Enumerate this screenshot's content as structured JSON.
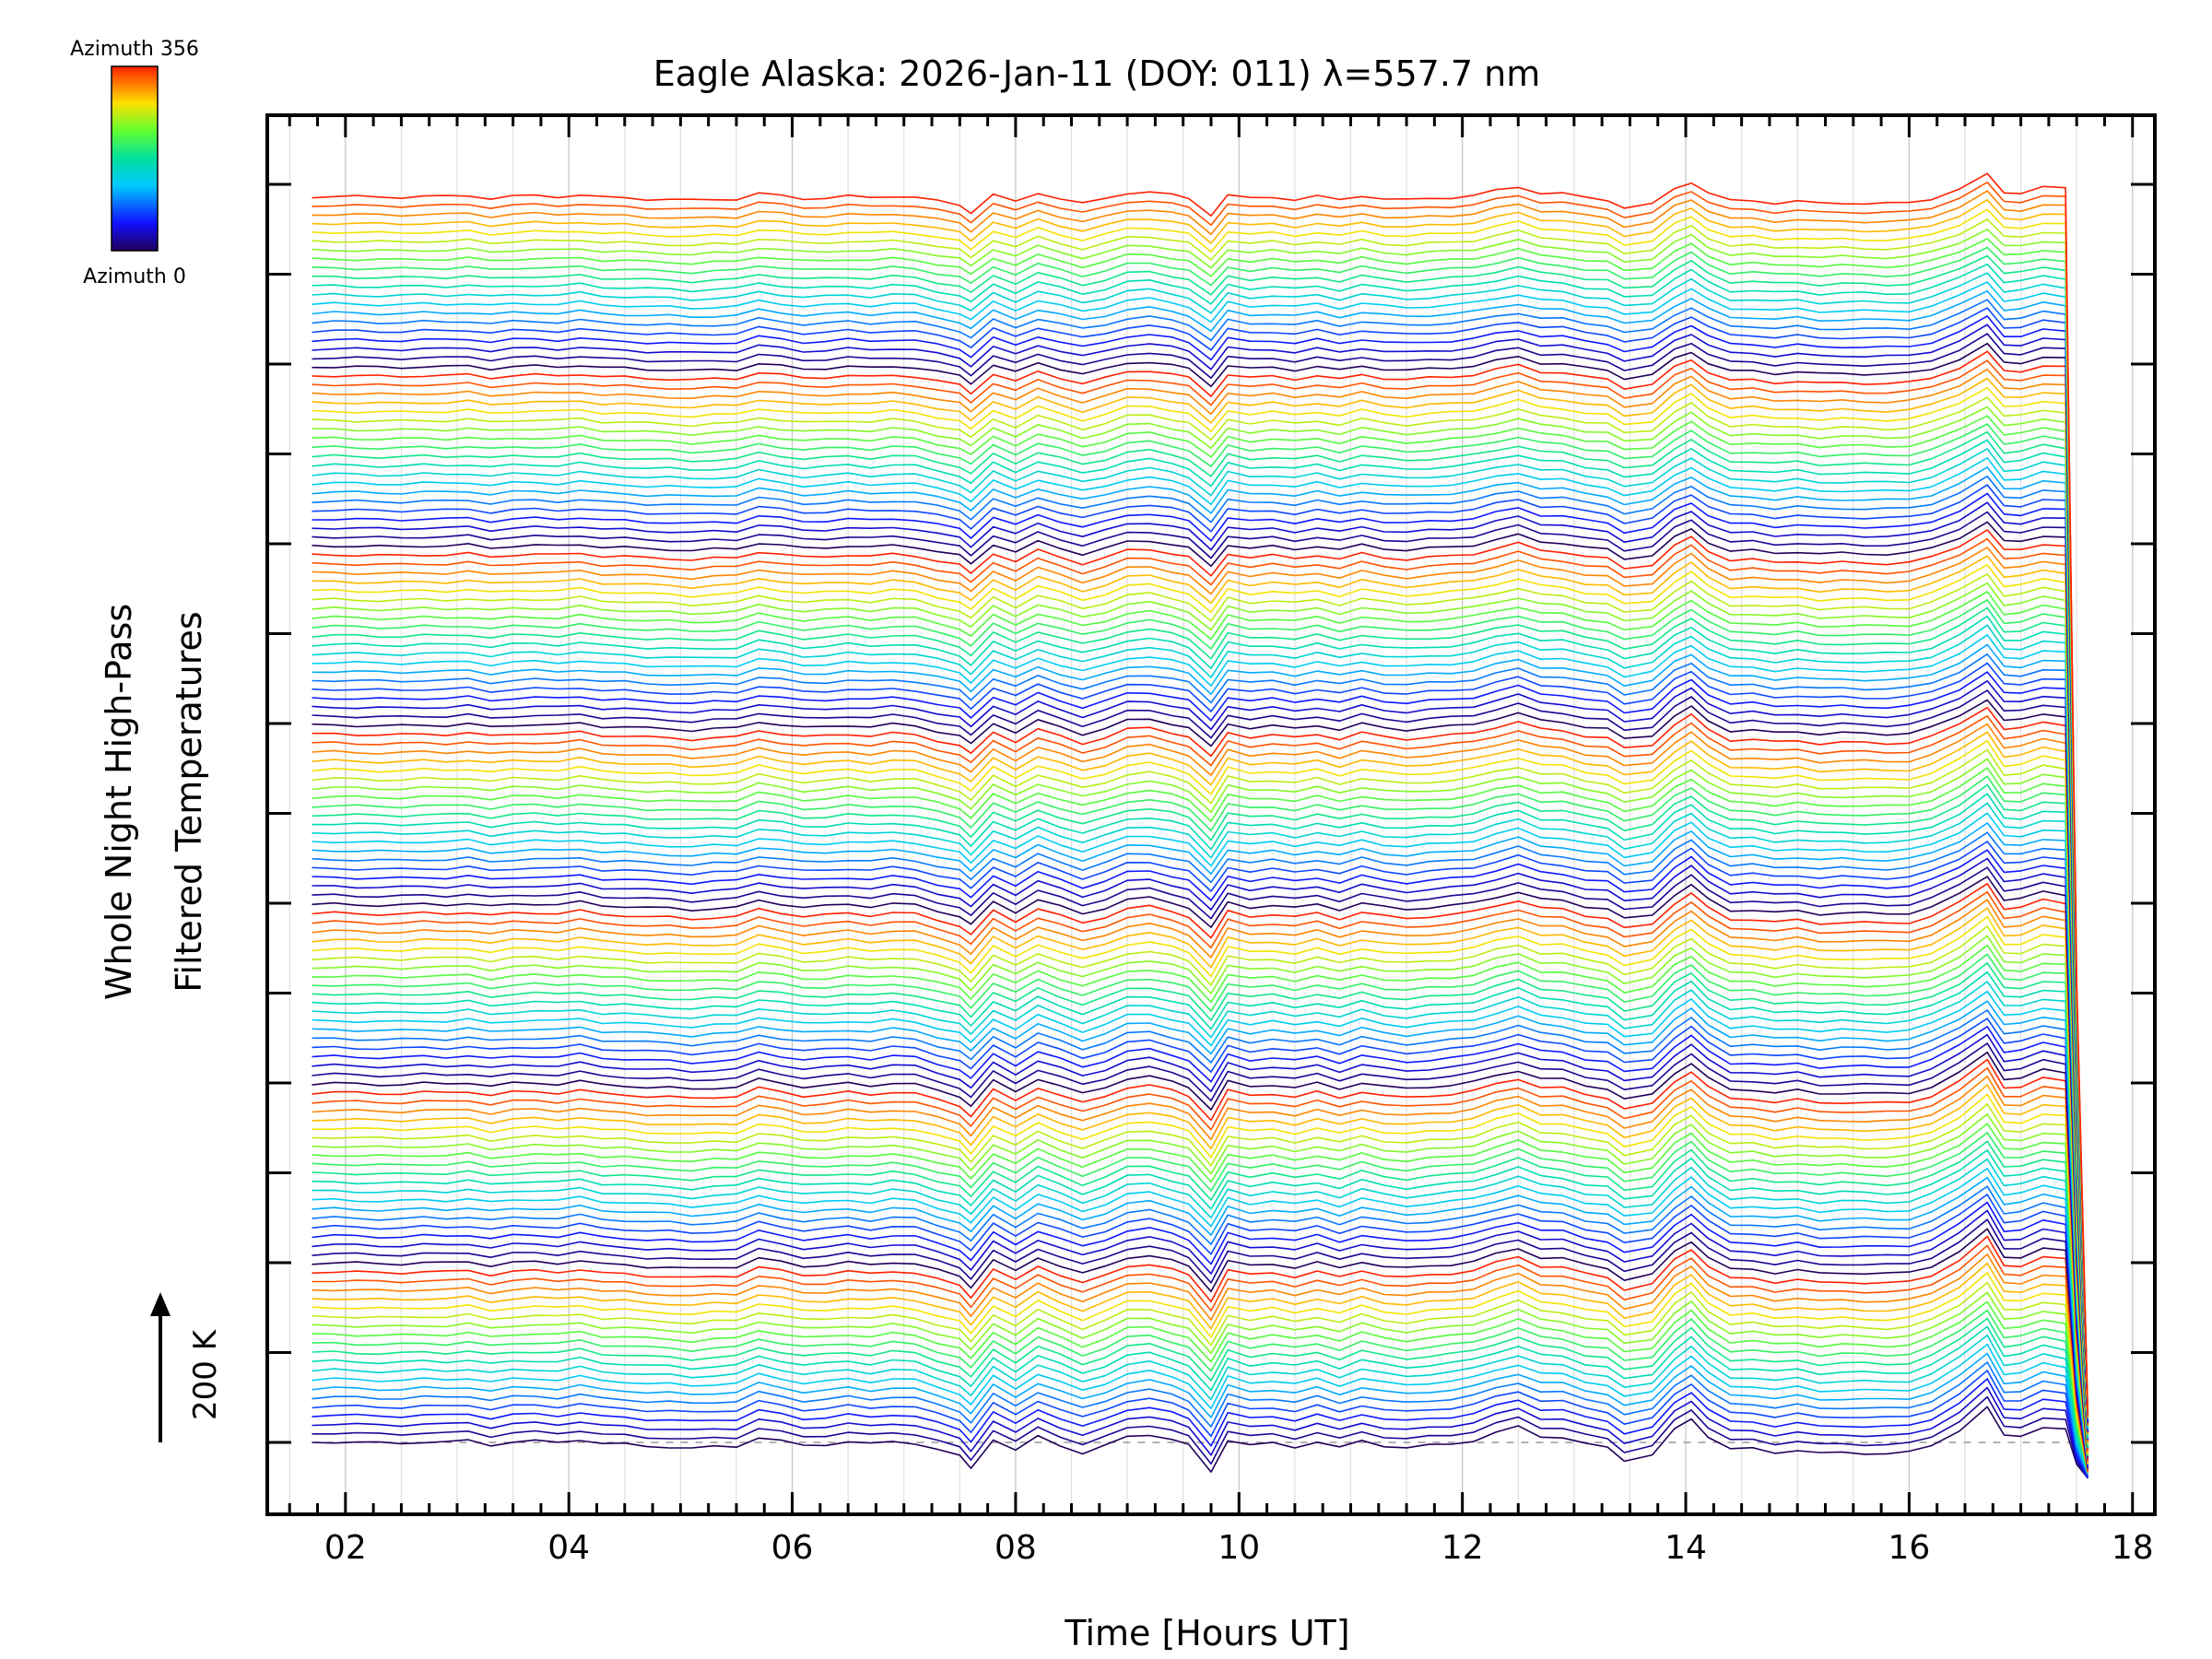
{
  "chart_data": {
    "type": "line",
    "title": "Eagle Alaska: 2026-Jan-11 (DOY: 011) λ=557.7 nm",
    "xlabel": "Time [Hours UT]",
    "ylabel_lines": [
      "Whole Night High-Pass",
      "Filtered Temperatures"
    ],
    "xlim": [
      1.3,
      18.2
    ],
    "xticks": [
      "02",
      "04",
      "06",
      "08",
      "10",
      "12",
      "14",
      "16",
      "18"
    ],
    "xtick_values": [
      2,
      4,
      6,
      8,
      10,
      12,
      14,
      16,
      18
    ],
    "grid": true,
    "colorbar": {
      "top_label": "Azimuth 356",
      "bottom_label": "Azimuth 0",
      "colormap": "rainbow"
    },
    "scale_bar": {
      "label": "200 K"
    },
    "stack": {
      "groups": 7,
      "traces_per_group": 20,
      "offset_K": 14.3
    },
    "base_x": [
      1.7,
      1.9,
      2.1,
      2.3,
      2.5,
      2.7,
      2.9,
      3.1,
      3.3,
      3.5,
      3.7,
      3.9,
      4.1,
      4.3,
      4.5,
      4.7,
      4.9,
      5.1,
      5.3,
      5.5,
      5.7,
      5.9,
      6.1,
      6.3,
      6.5,
      6.7,
      6.9,
      7.1,
      7.3,
      7.5,
      7.6,
      7.8,
      8.0,
      8.2,
      8.4,
      8.6,
      8.8,
      9.0,
      9.2,
      9.4,
      9.55,
      9.75,
      9.9,
      10.1,
      10.3,
      10.5,
      10.7,
      10.9,
      11.1,
      11.3,
      11.5,
      11.7,
      11.9,
      12.1,
      12.3,
      12.5,
      12.7,
      12.9,
      13.1,
      13.3,
      13.45,
      13.7,
      13.9,
      14.05,
      14.2,
      14.4,
      14.6,
      14.8,
      15.0,
      15.2,
      15.4,
      15.6,
      15.8,
      16.0,
      16.2,
      16.45,
      16.7,
      16.85,
      17.0,
      17.2,
      17.4,
      17.5,
      17.6
    ],
    "base_y_K": [
      0,
      1,
      0,
      -1,
      -1,
      1,
      0,
      3,
      -4,
      1,
      2,
      0,
      5,
      -2,
      -3,
      -6,
      -7,
      -10,
      -7,
      -6,
      8,
      2,
      -5,
      -3,
      1,
      -3,
      2,
      -1,
      -12,
      -22,
      -40,
      5,
      -14,
      10,
      -4,
      -18,
      -6,
      10,
      13,
      4,
      -5,
      -46,
      4,
      -5,
      -1,
      -7,
      1,
      -9,
      3,
      -5,
      -9,
      -5,
      -2,
      3,
      15,
      25,
      10,
      8,
      -3,
      -8,
      -28,
      -20,
      20,
      38,
      10,
      -11,
      -10,
      -16,
      -12,
      -18,
      -16,
      -17,
      -18,
      -16,
      -5,
      20,
      56,
      10,
      11,
      25,
      20,
      -36,
      -55
    ]
  }
}
